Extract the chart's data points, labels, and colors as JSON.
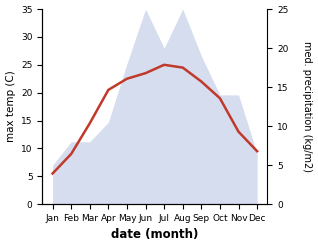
{
  "months": [
    "Jan",
    "Feb",
    "Mar",
    "Apr",
    "May",
    "Jun",
    "Jul",
    "Aug",
    "Sep",
    "Oct",
    "Nov",
    "Dec"
  ],
  "temperature": [
    5.5,
    9.0,
    14.5,
    20.5,
    22.5,
    23.5,
    25.0,
    24.5,
    22.0,
    19.0,
    13.0,
    9.5
  ],
  "precipitation": [
    5.0,
    8.0,
    8.0,
    10.5,
    18.0,
    25.0,
    20.0,
    25.0,
    19.0,
    14.0,
    14.0,
    6.5
  ],
  "temp_ylim": [
    0,
    35
  ],
  "precip_ylim": [
    0,
    25
  ],
  "temp_color": "#c0392b",
  "precip_color": "#c5cfe8",
  "xlabel": "date (month)",
  "ylabel_left": "max temp (C)",
  "ylabel_right": "med. precipitation (kg/m2)",
  "background_color": "#ffffff"
}
